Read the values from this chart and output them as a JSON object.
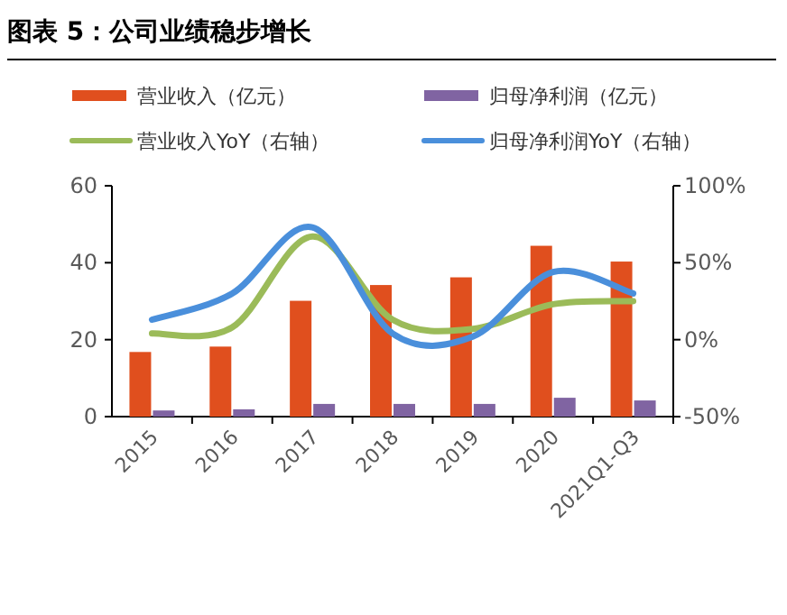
{
  "chart_data": {
    "type": "bar",
    "title": "图表 5：公司业绩稳步增长",
    "categories": [
      "2015",
      "2016",
      "2017",
      "2018",
      "2019",
      "2020",
      "2021Q1-Q3"
    ],
    "series": [
      {
        "name": "营业收入（亿元）",
        "color": "#e04f1e",
        "values": [
          16.8,
          18.2,
          30.1,
          34.2,
          36.2,
          44.4,
          40.3
        ]
      },
      {
        "name": "归母净利润（亿元）",
        "color": "#8064a2",
        "values": [
          1.6,
          1.9,
          3.3,
          3.3,
          3.3,
          4.9,
          4.2
        ]
      },
      {
        "name": "营业收入YoY（右轴）",
        "type": "line",
        "axis": "y2",
        "color": "#9bbb59",
        "values": [
          4,
          8,
          67,
          13,
          7,
          23,
          25
        ]
      },
      {
        "name": "归母净利润YoY（右轴）",
        "type": "line",
        "axis": "y2",
        "color": "#4a8fdb",
        "values": [
          13,
          30,
          73,
          4,
          2,
          44,
          30
        ]
      }
    ],
    "ylim": [
      0,
      60
    ],
    "yticks": [
      0,
      20,
      40,
      60
    ],
    "y2lim": [
      -50,
      100
    ],
    "y2ticks": [
      {
        "value": -50,
        "label": "-50%"
      },
      {
        "value": 0,
        "label": "0%"
      },
      {
        "value": 50,
        "label": "50%"
      },
      {
        "value": 100,
        "label": "100%"
      }
    ],
    "legend": "top",
    "grid": false,
    "marker": "none",
    "line_style": "solid"
  }
}
